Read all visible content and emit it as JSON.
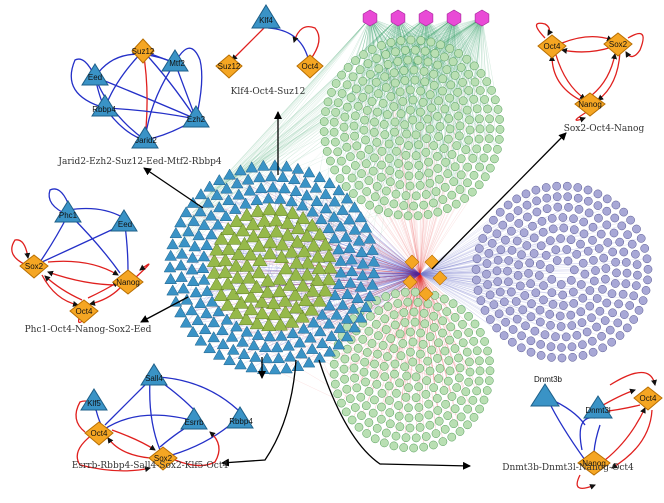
{
  "colors": {
    "tf": "#f5a623",
    "tf_stroke": "#b86e00",
    "triangle": "#3a93c6",
    "triangle_stroke": "#1d5f88",
    "inner_triangle": "#96b94a",
    "green_circle": "#b9dfb3",
    "purple_circle": "#a8a8d6",
    "pink_hex": "#e94ad6",
    "edge_blue": "#2430c8",
    "edge_red": "#e0201e",
    "edge_green": "#3aa36b"
  },
  "motifs": {
    "m1": {
      "caption": "Jarid2-Ezh2-Suz12-Eed-Mtf2-Rbbp4",
      "nodes": [
        "Suz12",
        "Eed",
        "Mtf2",
        "Rbbp4",
        "Jarid2",
        "Ezh2"
      ]
    },
    "m2": {
      "caption": "Klf4-Oct4-Suz12",
      "nodes": [
        "Klf4",
        "Suz12",
        "Oct4"
      ]
    },
    "m3": {
      "caption": "Sox2-Oct4-Nanog",
      "nodes": [
        "Oct4",
        "Sox2",
        "Nanog"
      ]
    },
    "m4": {
      "caption": "Phc1-Oct4-Nanog-Sox2-Eed",
      "nodes": [
        "Phc1",
        "Eed",
        "Sox2",
        "Nanog",
        "Oct4"
      ]
    },
    "m5": {
      "caption": "Esrrb-Rbbp4-Sall4-Sox2-Klf5-Oct4",
      "nodes": [
        "Sall4",
        "Klf5",
        "Esrrb",
        "Rbbp4",
        "Oct4",
        "Sox2"
      ]
    },
    "m6": {
      "caption": "Dnmt3b-Dnmt3l-Nanog-Oct4",
      "nodes": [
        "Dnmt3b",
        "Dnmt3l",
        "Oct4",
        "Nanog"
      ]
    }
  }
}
